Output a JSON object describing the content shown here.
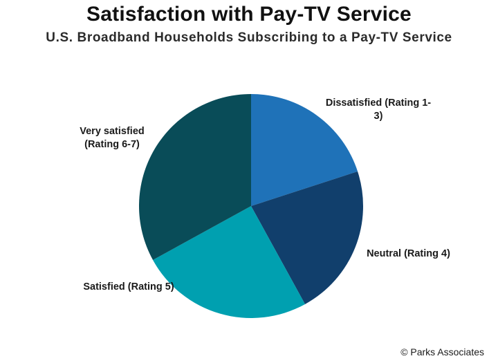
{
  "chart_data": {
    "type": "pie",
    "title": "Satisfaction with Pay-TV Service",
    "subtitle": "U.S. Broadband Households Subscribing to a Pay-TV Service",
    "categories": [
      "Dissatisfied (Rating 1-3)",
      "Neutral (Rating 4)",
      "Satisfied (Rating 5)",
      "Very satisfied (Rating 6-7)"
    ],
    "values": [
      20,
      22,
      25,
      33
    ],
    "colors": [
      "#1f72b8",
      "#113f6c",
      "#00a0b0",
      "#094c58"
    ],
    "start_angle_deg": 0,
    "direction": "clockwise",
    "data_labels_shown": false
  },
  "source": "© Parks Associates"
}
